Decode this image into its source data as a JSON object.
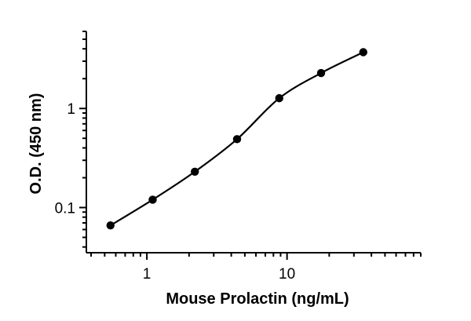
{
  "chart_data": {
    "type": "scatter",
    "title": "",
    "xlabel": "Mouse Prolactin (ng/mL)",
    "ylabel": "O.D. (450 nm)",
    "xscale": "log",
    "yscale": "log",
    "xlim": [
      0.37,
      90
    ],
    "ylim": [
      0.035,
      6
    ],
    "x_major_ticks": [
      1,
      10
    ],
    "x_major_tick_labels": [
      "1",
      "10"
    ],
    "y_major_ticks": [
      0.1,
      1
    ],
    "y_major_tick_labels": [
      "0.1",
      "1"
    ],
    "grid": false,
    "legend": "none",
    "point_color": "#000000",
    "curve_color": "#000000",
    "series": [
      {
        "x": [
          0.55,
          1.1,
          2.2,
          4.4,
          8.8,
          17.5,
          35
        ],
        "y": [
          0.066,
          0.12,
          0.23,
          0.49,
          1.27,
          2.28,
          3.7
        ]
      }
    ],
    "fit": "4PL"
  }
}
